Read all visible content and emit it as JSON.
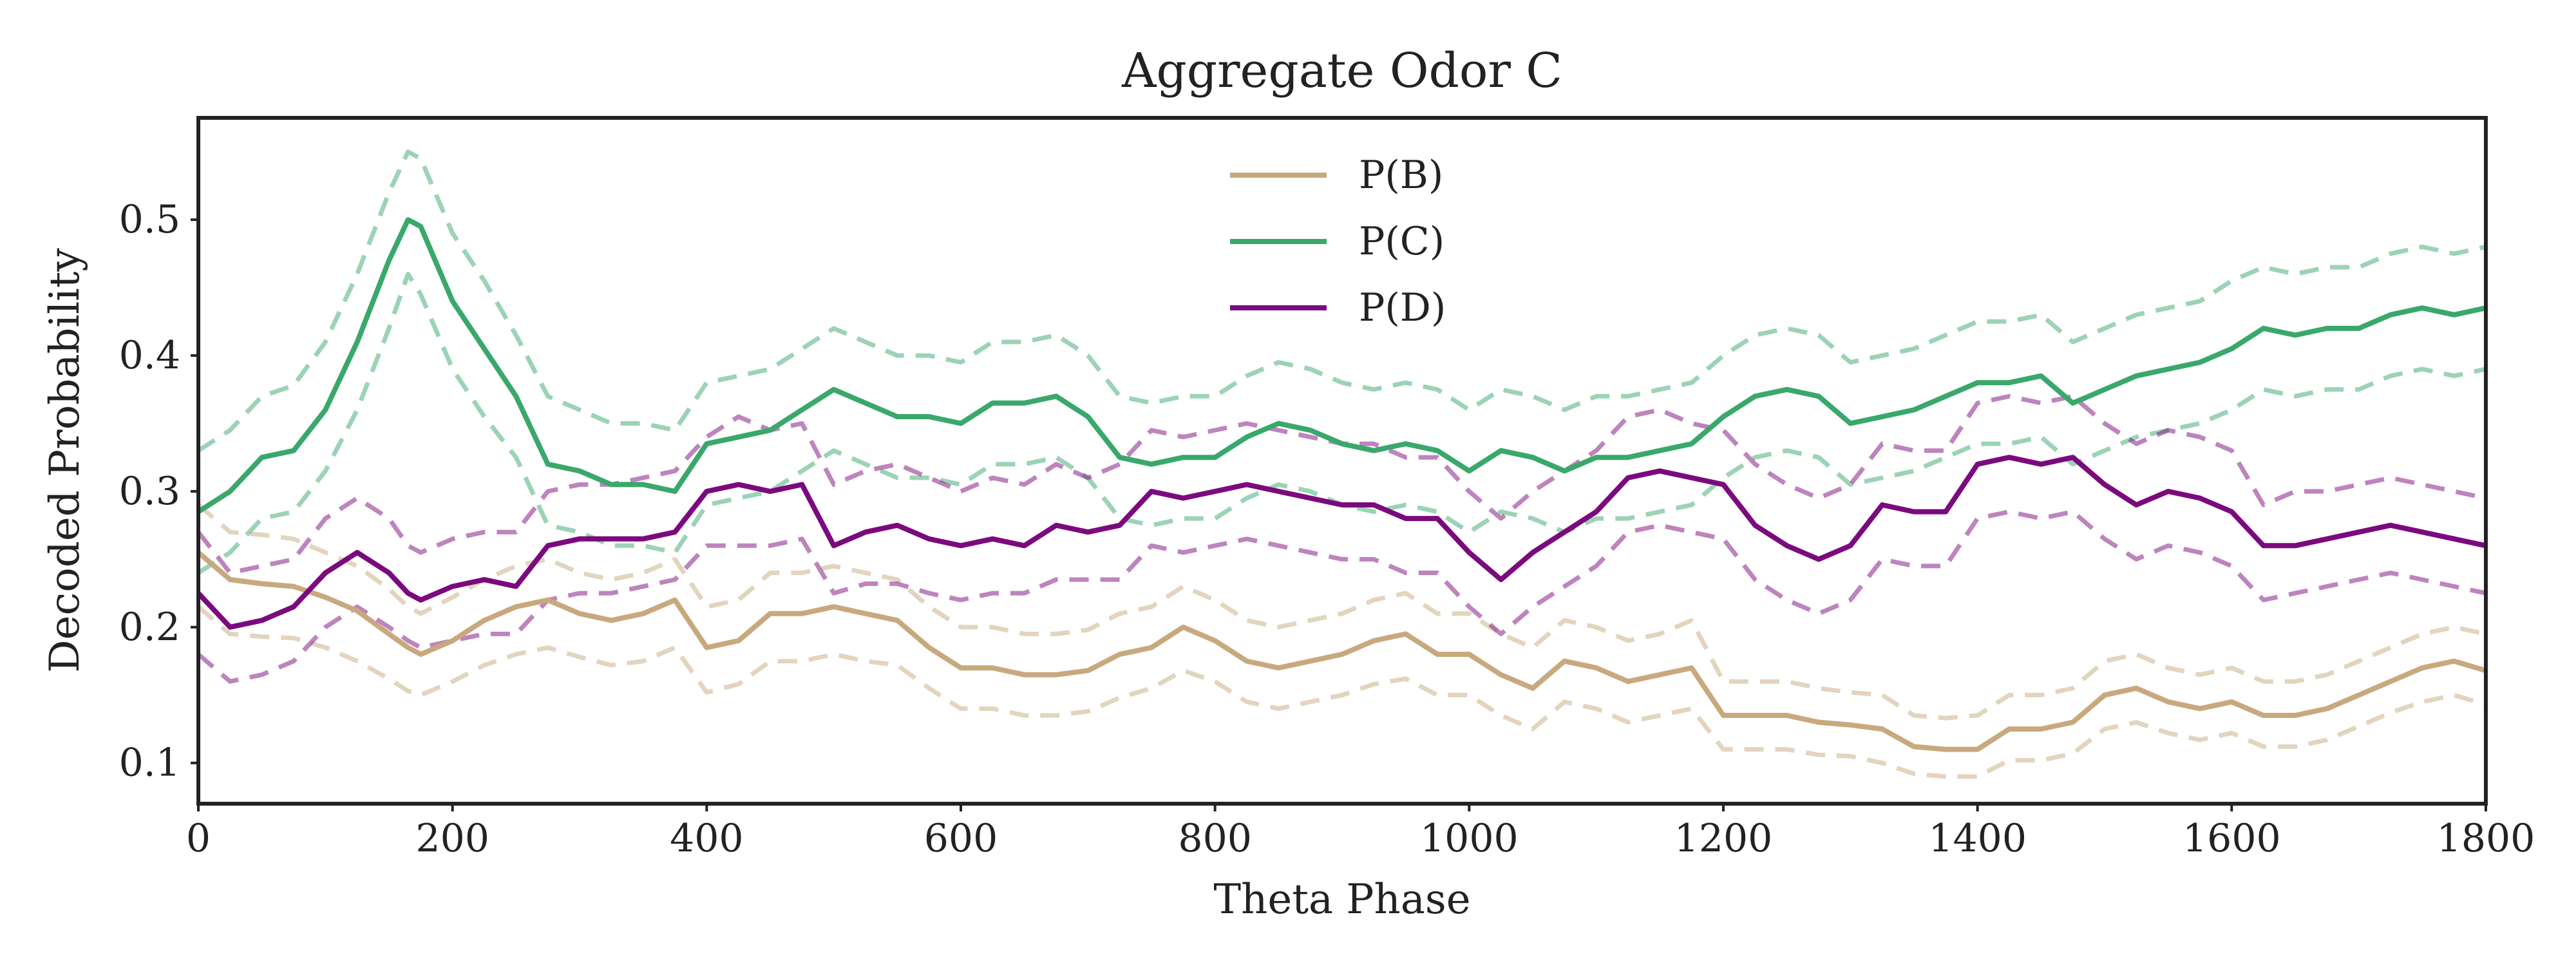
{
  "chart_data": {
    "type": "line",
    "title": "Aggregate Odor C",
    "xlabel": "Theta Phase",
    "ylabel": "Decoded Probability",
    "xlim": [
      0,
      1800
    ],
    "ylim": [
      0.07,
      0.575
    ],
    "xticks": [
      0,
      200,
      400,
      600,
      800,
      1000,
      1200,
      1400,
      1600,
      1800
    ],
    "xtick_labels": [
      "0",
      "200",
      "400",
      "600",
      "800",
      "1000",
      "1200",
      "1400",
      "1600",
      "1800"
    ],
    "yticks": [
      0.1,
      0.2,
      0.3,
      0.4,
      0.5
    ],
    "ytick_labels": [
      "0.1",
      "0.2",
      "0.3",
      "0.4",
      "0.5"
    ],
    "grid": false,
    "legend_position": "top-center",
    "x": [
      0,
      25,
      50,
      75,
      100,
      125,
      150,
      165,
      175,
      200,
      225,
      250,
      275,
      300,
      325,
      350,
      375,
      400,
      425,
      450,
      475,
      500,
      525,
      550,
      575,
      600,
      625,
      650,
      675,
      700,
      725,
      750,
      775,
      800,
      825,
      850,
      875,
      900,
      925,
      950,
      975,
      1000,
      1025,
      1050,
      1075,
      1100,
      1125,
      1150,
      1175,
      1200,
      1225,
      1250,
      1275,
      1300,
      1325,
      1350,
      1375,
      1400,
      1425,
      1450,
      1475,
      1500,
      1525,
      1550,
      1575,
      1600,
      1625,
      1650,
      1675,
      1700,
      1725,
      1750,
      1775,
      1800
    ],
    "series": [
      {
        "name": "P(B)",
        "color": "#c8a97e",
        "values": [
          0.255,
          0.235,
          0.232,
          0.23,
          0.222,
          0.212,
          0.195,
          0.185,
          0.18,
          0.19,
          0.205,
          0.215,
          0.22,
          0.21,
          0.205,
          0.21,
          0.22,
          0.185,
          0.19,
          0.21,
          0.21,
          0.215,
          0.21,
          0.205,
          0.185,
          0.17,
          0.17,
          0.165,
          0.165,
          0.168,
          0.18,
          0.185,
          0.2,
          0.19,
          0.175,
          0.17,
          0.175,
          0.18,
          0.19,
          0.195,
          0.18,
          0.18,
          0.165,
          0.155,
          0.175,
          0.17,
          0.16,
          0.165,
          0.17,
          0.135,
          0.135,
          0.135,
          0.13,
          0.128,
          0.125,
          0.112,
          0.11,
          0.11,
          0.125,
          0.125,
          0.13,
          0.15,
          0.155,
          0.145,
          0.14,
          0.145,
          0.135,
          0.135,
          0.14,
          0.15,
          0.16,
          0.17,
          0.175,
          0.168
        ],
        "upper": [
          0.29,
          0.27,
          0.268,
          0.265,
          0.255,
          0.245,
          0.228,
          0.215,
          0.21,
          0.222,
          0.235,
          0.245,
          0.25,
          0.24,
          0.235,
          0.24,
          0.25,
          0.215,
          0.22,
          0.24,
          0.24,
          0.245,
          0.24,
          0.235,
          0.215,
          0.2,
          0.2,
          0.195,
          0.195,
          0.198,
          0.21,
          0.215,
          0.23,
          0.22,
          0.205,
          0.2,
          0.205,
          0.21,
          0.22,
          0.225,
          0.21,
          0.21,
          0.195,
          0.185,
          0.205,
          0.2,
          0.19,
          0.195,
          0.205,
          0.16,
          0.16,
          0.16,
          0.155,
          0.152,
          0.15,
          0.135,
          0.133,
          0.135,
          0.15,
          0.15,
          0.155,
          0.175,
          0.18,
          0.17,
          0.165,
          0.17,
          0.16,
          0.16,
          0.165,
          0.175,
          0.185,
          0.195,
          0.2,
          0.195
        ],
        "lower": [
          0.215,
          0.195,
          0.193,
          0.192,
          0.185,
          0.175,
          0.162,
          0.153,
          0.15,
          0.16,
          0.172,
          0.18,
          0.185,
          0.178,
          0.172,
          0.175,
          0.185,
          0.152,
          0.158,
          0.175,
          0.175,
          0.18,
          0.175,
          0.172,
          0.155,
          0.14,
          0.14,
          0.135,
          0.135,
          0.138,
          0.148,
          0.155,
          0.168,
          0.16,
          0.145,
          0.14,
          0.145,
          0.15,
          0.158,
          0.162,
          0.15,
          0.15,
          0.135,
          0.125,
          0.145,
          0.14,
          0.13,
          0.135,
          0.14,
          0.11,
          0.11,
          0.11,
          0.106,
          0.105,
          0.1,
          0.092,
          0.09,
          0.09,
          0.102,
          0.102,
          0.107,
          0.125,
          0.13,
          0.122,
          0.117,
          0.122,
          0.112,
          0.112,
          0.117,
          0.127,
          0.137,
          0.145,
          0.15,
          0.143
        ]
      },
      {
        "name": "P(C)",
        "color": "#3aa86b",
        "values": [
          0.285,
          0.3,
          0.325,
          0.33,
          0.36,
          0.41,
          0.47,
          0.5,
          0.495,
          0.44,
          0.405,
          0.37,
          0.32,
          0.315,
          0.305,
          0.305,
          0.3,
          0.335,
          0.34,
          0.345,
          0.36,
          0.375,
          0.365,
          0.355,
          0.355,
          0.35,
          0.365,
          0.365,
          0.37,
          0.355,
          0.325,
          0.32,
          0.325,
          0.325,
          0.34,
          0.35,
          0.345,
          0.335,
          0.33,
          0.335,
          0.33,
          0.315,
          0.33,
          0.325,
          0.315,
          0.325,
          0.325,
          0.33,
          0.335,
          0.355,
          0.37,
          0.375,
          0.37,
          0.35,
          0.355,
          0.36,
          0.37,
          0.38,
          0.38,
          0.385,
          0.365,
          0.375,
          0.385,
          0.39,
          0.395,
          0.405,
          0.42,
          0.415,
          0.42,
          0.42,
          0.43,
          0.435,
          0.43,
          0.435
        ],
        "upper": [
          0.33,
          0.345,
          0.37,
          0.378,
          0.41,
          0.46,
          0.52,
          0.55,
          0.545,
          0.49,
          0.455,
          0.415,
          0.37,
          0.36,
          0.35,
          0.35,
          0.345,
          0.38,
          0.385,
          0.39,
          0.405,
          0.42,
          0.41,
          0.4,
          0.4,
          0.395,
          0.41,
          0.41,
          0.415,
          0.4,
          0.37,
          0.365,
          0.37,
          0.37,
          0.385,
          0.395,
          0.39,
          0.38,
          0.375,
          0.38,
          0.375,
          0.36,
          0.375,
          0.37,
          0.36,
          0.37,
          0.37,
          0.375,
          0.38,
          0.4,
          0.415,
          0.42,
          0.415,
          0.395,
          0.4,
          0.405,
          0.415,
          0.425,
          0.425,
          0.43,
          0.41,
          0.42,
          0.43,
          0.435,
          0.44,
          0.455,
          0.465,
          0.46,
          0.465,
          0.465,
          0.475,
          0.48,
          0.475,
          0.48
        ],
        "lower": [
          0.24,
          0.255,
          0.28,
          0.285,
          0.315,
          0.36,
          0.42,
          0.46,
          0.445,
          0.39,
          0.355,
          0.325,
          0.275,
          0.27,
          0.26,
          0.26,
          0.255,
          0.29,
          0.295,
          0.3,
          0.315,
          0.33,
          0.32,
          0.31,
          0.31,
          0.305,
          0.32,
          0.32,
          0.325,
          0.31,
          0.28,
          0.275,
          0.28,
          0.28,
          0.295,
          0.305,
          0.3,
          0.29,
          0.285,
          0.29,
          0.285,
          0.27,
          0.285,
          0.28,
          0.27,
          0.28,
          0.28,
          0.285,
          0.29,
          0.31,
          0.325,
          0.33,
          0.325,
          0.305,
          0.31,
          0.315,
          0.325,
          0.335,
          0.335,
          0.34,
          0.32,
          0.33,
          0.34,
          0.345,
          0.35,
          0.36,
          0.375,
          0.37,
          0.375,
          0.375,
          0.385,
          0.39,
          0.385,
          0.39
        ]
      },
      {
        "name": "P(D)",
        "color": "#7b0a7e",
        "values": [
          0.225,
          0.2,
          0.205,
          0.215,
          0.24,
          0.255,
          0.24,
          0.225,
          0.22,
          0.23,
          0.235,
          0.23,
          0.26,
          0.265,
          0.265,
          0.265,
          0.27,
          0.3,
          0.305,
          0.3,
          0.305,
          0.26,
          0.27,
          0.275,
          0.265,
          0.26,
          0.265,
          0.26,
          0.275,
          0.27,
          0.275,
          0.3,
          0.295,
          0.3,
          0.305,
          0.3,
          0.295,
          0.29,
          0.29,
          0.28,
          0.28,
          0.255,
          0.235,
          0.255,
          0.27,
          0.285,
          0.31,
          0.315,
          0.31,
          0.305,
          0.275,
          0.26,
          0.25,
          0.26,
          0.29,
          0.285,
          0.285,
          0.32,
          0.325,
          0.32,
          0.325,
          0.305,
          0.29,
          0.3,
          0.295,
          0.285,
          0.26,
          0.26,
          0.265,
          0.27,
          0.275,
          0.27,
          0.265,
          0.26
        ],
        "upper": [
          0.27,
          0.24,
          0.245,
          0.25,
          0.28,
          0.295,
          0.28,
          0.26,
          0.255,
          0.265,
          0.27,
          0.27,
          0.3,
          0.305,
          0.305,
          0.31,
          0.315,
          0.34,
          0.355,
          0.345,
          0.35,
          0.305,
          0.315,
          0.32,
          0.31,
          0.3,
          0.31,
          0.305,
          0.32,
          0.31,
          0.32,
          0.345,
          0.34,
          0.345,
          0.35,
          0.345,
          0.34,
          0.335,
          0.335,
          0.325,
          0.325,
          0.3,
          0.28,
          0.3,
          0.315,
          0.33,
          0.355,
          0.36,
          0.35,
          0.345,
          0.32,
          0.305,
          0.295,
          0.305,
          0.335,
          0.33,
          0.33,
          0.365,
          0.37,
          0.365,
          0.37,
          0.35,
          0.335,
          0.345,
          0.34,
          0.33,
          0.29,
          0.3,
          0.3,
          0.305,
          0.31,
          0.305,
          0.3,
          0.295
        ],
        "lower": [
          0.18,
          0.16,
          0.165,
          0.175,
          0.2,
          0.215,
          0.2,
          0.19,
          0.185,
          0.19,
          0.195,
          0.195,
          0.22,
          0.225,
          0.225,
          0.23,
          0.235,
          0.26,
          0.26,
          0.26,
          0.265,
          0.225,
          0.232,
          0.232,
          0.225,
          0.22,
          0.225,
          0.225,
          0.235,
          0.235,
          0.235,
          0.26,
          0.255,
          0.26,
          0.265,
          0.26,
          0.255,
          0.25,
          0.25,
          0.24,
          0.24,
          0.215,
          0.195,
          0.215,
          0.23,
          0.245,
          0.27,
          0.275,
          0.27,
          0.265,
          0.235,
          0.22,
          0.21,
          0.22,
          0.25,
          0.245,
          0.245,
          0.28,
          0.285,
          0.28,
          0.285,
          0.265,
          0.25,
          0.26,
          0.255,
          0.245,
          0.22,
          0.225,
          0.23,
          0.235,
          0.24,
          0.235,
          0.23,
          0.225
        ]
      }
    ]
  }
}
